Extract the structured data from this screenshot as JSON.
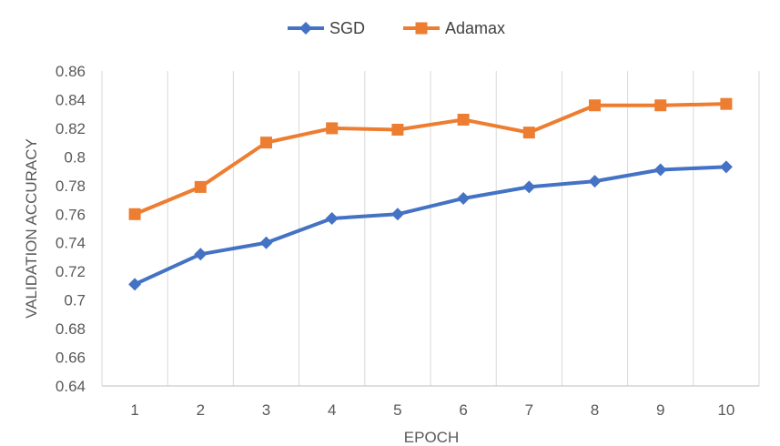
{
  "chart_data": {
    "type": "line",
    "title": "",
    "xlabel": "EPOCH",
    "ylabel": "VALIDATION ACCURACY",
    "categories": [
      "1",
      "2",
      "3",
      "4",
      "5",
      "6",
      "7",
      "8",
      "9",
      "10"
    ],
    "ylim": [
      0.64,
      0.86
    ],
    "yticks": [
      "0.64",
      "0.66",
      "0.68",
      "0.7",
      "0.72",
      "0.74",
      "0.76",
      "0.78",
      "0.8",
      "0.82",
      "0.84",
      "0.86"
    ],
    "grid": "vertical",
    "legend_position": "top",
    "series": [
      {
        "name": "SGD",
        "color": "#4472C4",
        "marker": "diamond",
        "values": [
          0.711,
          0.732,
          0.74,
          0.757,
          0.76,
          0.771,
          0.779,
          0.783,
          0.791,
          0.793
        ]
      },
      {
        "name": "Adamax",
        "color": "#ED7D31",
        "marker": "square",
        "values": [
          0.76,
          0.779,
          0.81,
          0.82,
          0.819,
          0.826,
          0.817,
          0.836,
          0.836,
          0.837
        ]
      }
    ]
  }
}
